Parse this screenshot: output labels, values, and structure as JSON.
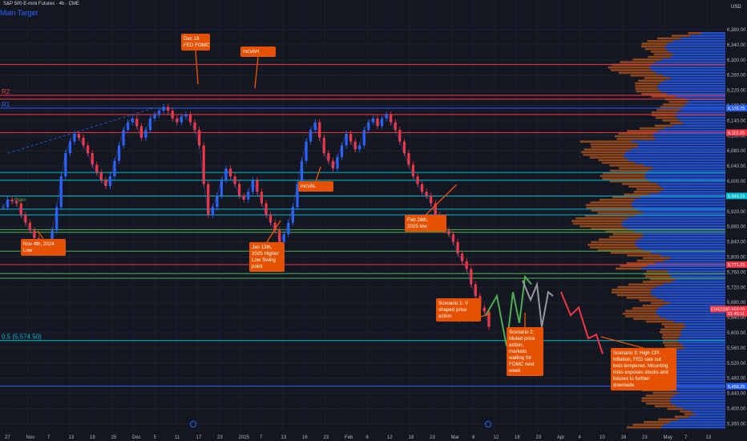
{
  "header": {
    "symbol_line": "S&P 500 E-mini Futures · 4h · CME",
    "main_target": "Main Target",
    "currency": "USD"
  },
  "chart_data": {
    "type": "line",
    "series": [
      {
        "values": [
          5920,
          5940,
          5935,
          5930,
          5900,
          5880,
          5860,
          5840,
          5825,
          5810,
          5816,
          5860,
          5920,
          6000,
          6060,
          6090,
          6110,
          6100,
          6080,
          6060,
          6030,
          6010,
          5990,
          5975,
          6000,
          6040,
          6080,
          6120,
          6140,
          6150,
          6130,
          6100,
          6120,
          6150,
          6160,
          6170,
          6180,
          6170,
          6150,
          6140,
          6155,
          6160,
          6140,
          6120,
          6080,
          5980,
          5900,
          5920,
          5950,
          5990,
          6020,
          6000,
          5980,
          5950,
          5940,
          5960,
          5990,
          5960,
          5930,
          5900,
          5880,
          5860,
          5830,
          5850,
          5880,
          5920,
          5980,
          6040,
          6090,
          6120,
          6140,
          6100,
          6060,
          6040,
          6020,
          6050,
          6080,
          6110,
          6090,
          6070,
          6080,
          6120,
          6140,
          6150,
          6130,
          6150,
          6160,
          6140,
          6120,
          6090,
          6060,
          6030,
          6000,
          5980,
          5960,
          5950,
          5930,
          5900,
          5880,
          5860,
          5850,
          5830,
          5800,
          5780,
          5760,
          5720,
          5690,
          5660,
          5650,
          5610
        ]
      }
    ],
    "price_axis": [
      "6,380.00",
      "6,340.00",
      "6,300.00",
      "6,260.00",
      "6,220.00",
      "6,180.00",
      "6,140.00",
      "6,100.00",
      "6,080.00",
      "6,040.00",
      "6,000.00",
      "5,960.00",
      "5,920.00",
      "5,880.00",
      "5,840.00",
      "5,800.00",
      "5,760.00",
      "5,720.00",
      "5,680.00",
      "5,640.00",
      "5,600.00",
      "5,560.00",
      "5,520.00",
      "5,480.00",
      "5,440.00",
      "5,400.00",
      "5,360.00"
    ],
    "price_badges": [
      {
        "text": "6,176.75",
        "color": "#2962ff"
      },
      {
        "text": "6,113.25",
        "color": "#f23645"
      },
      {
        "text": "5,949.25",
        "color": "#00bcd4"
      },
      {
        "text": "5,771.25",
        "color": "#f23645"
      },
      {
        "text": "5,656.00",
        "color": "#f23645"
      },
      {
        "text": "01:45:11",
        "color": "#f23645"
      },
      {
        "text": "5,456.25",
        "color": "#2962ff"
      }
    ],
    "right_tag": "ESH2025",
    "time_axis": [
      "27",
      "Nov",
      "7",
      "13",
      "19",
      "25",
      "Dec",
      "5",
      "11",
      "17",
      "23",
      "2025",
      "7",
      "13",
      "16",
      "23",
      "Feb",
      "6",
      "12",
      "18",
      "23",
      "Mar",
      "6",
      "12",
      "18",
      "23",
      "Apr",
      "4",
      "10",
      "16",
      "23",
      "May",
      "7",
      "13"
    ],
    "levels": [
      {
        "price": 6290,
        "label": "",
        "color": "#f23645"
      },
      {
        "price": 6210,
        "label": "R2",
        "color": "#f23645"
      },
      {
        "price": 6200,
        "label": "",
        "color": "#f23645"
      },
      {
        "price": 6176.75,
        "label": "R1",
        "color": "#2962ff"
      },
      {
        "price": 6160,
        "label": "",
        "color": "#f23645"
      },
      {
        "price": 6113.25,
        "label": "",
        "color": "#f23645"
      },
      {
        "price": 6010,
        "label": "",
        "color": "#00bcd4"
      },
      {
        "price": 5990,
        "label": "",
        "color": "#00bcd4"
      },
      {
        "price": 5949.25,
        "label": "",
        "color": "#00bcd4"
      },
      {
        "price": 5915,
        "label": "",
        "color": "#00bcd4"
      },
      {
        "price": 5900,
        "label": "",
        "color": "#00bcd4"
      },
      {
        "price": 5862,
        "label": "",
        "color": "#4caf50"
      },
      {
        "price": 5855,
        "label": "",
        "color": "#4caf50"
      },
      {
        "price": 5806,
        "label": "",
        "color": "#4caf50"
      },
      {
        "price": 5771.25,
        "label": "",
        "color": "#f23645"
      },
      {
        "price": 5748,
        "label": "",
        "color": "#4caf50"
      },
      {
        "price": 5736,
        "label": "",
        "color": "#4caf50"
      },
      {
        "price": 5574.5,
        "label": "0.5 (5,574.50)",
        "color": "#00bcd4"
      },
      {
        "price": 5456.25,
        "label": "",
        "color": "#2962ff"
      }
    ],
    "left_small_labels": [
      "Open"
    ],
    "annotations": [
      {
        "lines": [
          "Dec 18",
          "FED FOMC"
        ]
      },
      {
        "lines": [
          "mcVAH"
        ]
      },
      {
        "lines": [
          "mcVAL"
        ]
      },
      {
        "lines": [
          "Nov 4th, 2024",
          "Low"
        ]
      },
      {
        "lines": [
          "Jan 13th,",
          "2025 Higher",
          "Low Swing",
          "point"
        ]
      },
      {
        "lines": [
          "Feb 28th,",
          "2025 low"
        ]
      },
      {
        "lines": [
          "Scenario 1: V",
          "shaped price",
          "action"
        ]
      },
      {
        "lines": [
          "Scenario 2:",
          "Muted price",
          "action,",
          "markets",
          "waiting for",
          "FOMC next",
          "week"
        ]
      },
      {
        "lines": [
          "Scenario 3: High CPI",
          "Inflation, FED rate cut",
          "bets tempered. Mounting",
          "risks exposes stocks and",
          "futures to further",
          "downside"
        ]
      }
    ],
    "scenarios": [
      {
        "name": "",
        "color": "#4caf50",
        "values": [
          5640,
          5690,
          5560,
          5700,
          5620,
          5740,
          5720
        ]
      },
      {
        "name": "",
        "color": "#9598a1",
        "values": [
          5730,
          5680,
          5720,
          5610,
          5700,
          5690
        ]
      },
      {
        "name": "",
        "color": "#f23645",
        "values": [
          5700,
          5640,
          5660,
          5580,
          5590,
          5540
        ]
      }
    ],
    "colors": {
      "background": "#131722",
      "candles": "#2962ff",
      "down": "#f23645",
      "profile_up": "#2962ff",
      "profile_down": "#b0521b",
      "annotation": "#e65100"
    }
  }
}
